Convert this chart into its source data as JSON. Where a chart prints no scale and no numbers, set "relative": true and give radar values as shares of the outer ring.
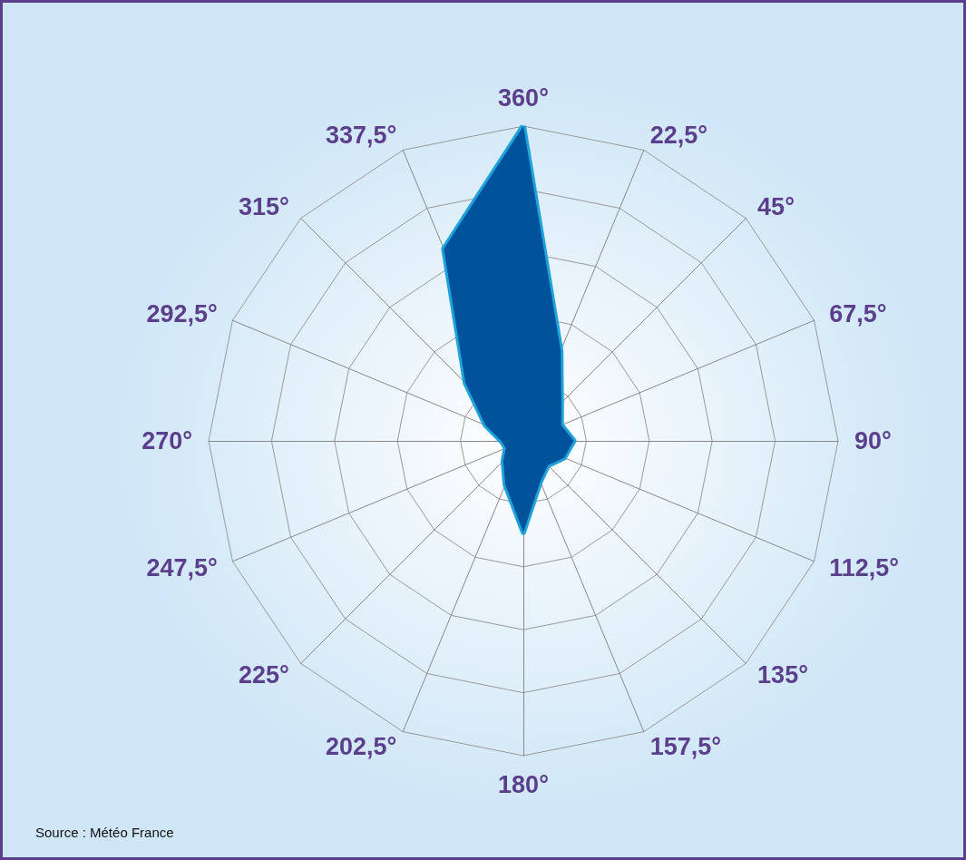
{
  "chart_data": {
    "type": "radar",
    "relative": true,
    "categories": [
      "360°",
      "22,5°",
      "45°",
      "67,5°",
      "90°",
      "112,5°",
      "135°",
      "157,5°",
      "180°",
      "202,5°",
      "225°",
      "247,5°",
      "270°",
      "292,5°",
      "315°",
      "337,5°"
    ],
    "series": [
      {
        "color": "#00529b",
        "values": [
          1.0,
          0.31,
          0.17,
          0.13,
          0.16,
          0.14,
          0.11,
          0.14,
          0.29,
          0.15,
          0.09,
          0.06,
          0.07,
          0.13,
          0.26,
          0.66
        ]
      }
    ],
    "annotations": [
      "Source : Météo France"
    ]
  }
}
